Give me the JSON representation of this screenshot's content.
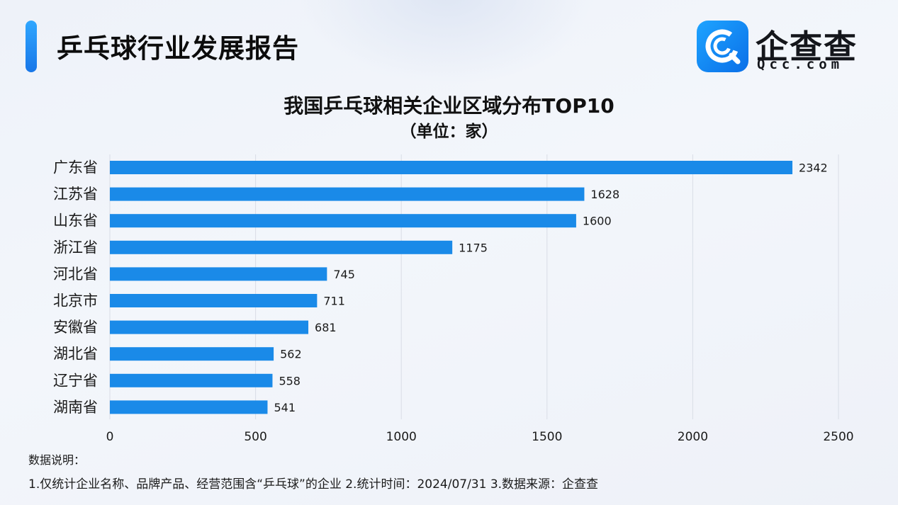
{
  "header": {
    "report_title": "乒乓球行业发展报告",
    "logo_name": "企查查",
    "logo_domain": "Qcc.com"
  },
  "colors": {
    "bar": "#1a8ae8",
    "grid": "#d9dde6",
    "accent": "#1a85f0"
  },
  "chart_data": {
    "type": "bar",
    "orientation": "horizontal",
    "title": "我国乒乓球相关企业区域分布TOP10",
    "subtitle": "（单位：家）",
    "xlabel": "",
    "ylabel": "",
    "categories": [
      "广东省",
      "江苏省",
      "山东省",
      "浙江省",
      "河北省",
      "北京市",
      "安徽省",
      "湖北省",
      "辽宁省",
      "湖南省"
    ],
    "values": [
      2342,
      1628,
      1600,
      1175,
      745,
      711,
      681,
      562,
      558,
      541
    ],
    "xlim": [
      0,
      2500
    ],
    "ticks": [
      0,
      500,
      1000,
      1500,
      2000,
      2500
    ],
    "grid": true,
    "legend": "none"
  },
  "notes": {
    "heading": "数据说明：",
    "body": "1.仅统计企业名称、品牌产品、经营范围含“乒乓球”的企业   2.统计时间：2024/07/31    3.数据来源：企查查"
  }
}
